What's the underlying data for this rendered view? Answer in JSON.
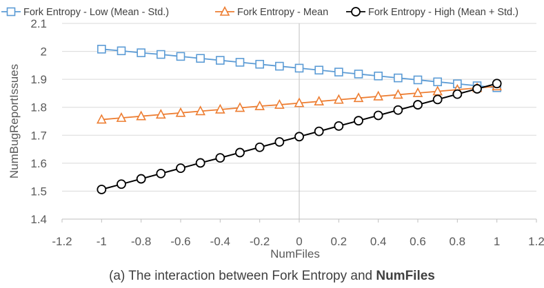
{
  "chart_data": {
    "type": "line",
    "xlabel": "NumFiles",
    "ylabel": "NumBugReportIssues",
    "xlim": [
      -1.2,
      1.2
    ],
    "ylim": [
      1.4,
      2.1
    ],
    "x_ticks": [
      "-1.2",
      "-1",
      "-0.8",
      "-0.6",
      "-0.4",
      "-0.2",
      "0",
      "0.2",
      "0.4",
      "0.6",
      "0.8",
      "1",
      "1.2"
    ],
    "y_ticks": [
      "1.4",
      "1.5",
      "1.6",
      "1.7",
      "1.8",
      "1.9",
      "2",
      "2.1"
    ],
    "grid": "horizontal",
    "legend_position": "top",
    "x": [
      -1,
      -0.9,
      -0.8,
      -0.7,
      -0.6,
      -0.5,
      -0.4,
      -0.3,
      -0.2,
      -0.1,
      0,
      0.1,
      0.2,
      0.3,
      0.4,
      0.5,
      0.6,
      0.7,
      0.8,
      0.9,
      1
    ],
    "series": [
      {
        "name": "Fork Entropy - Low (Mean - Std.)",
        "color": "#5b9bd5",
        "marker": "square",
        "values": [
          2.008,
          2.002,
          1.995,
          1.989,
          1.982,
          1.975,
          1.968,
          1.961,
          1.954,
          1.947,
          1.94,
          1.933,
          1.926,
          1.919,
          1.912,
          1.905,
          1.898,
          1.891,
          1.884,
          1.877,
          1.87
        ]
      },
      {
        "name": "Fork Entropy - Mean",
        "color": "#ed7d31",
        "marker": "triangle",
        "values": [
          1.756,
          1.762,
          1.768,
          1.774,
          1.78,
          1.786,
          1.792,
          1.798,
          1.804,
          1.809,
          1.815,
          1.821,
          1.827,
          1.833,
          1.839,
          1.845,
          1.851,
          1.857,
          1.863,
          1.869,
          1.875
        ]
      },
      {
        "name": "Fork Entropy - High (Mean + Std.)",
        "color": "#000000",
        "marker": "circle",
        "values": [
          1.506,
          1.525,
          1.544,
          1.563,
          1.582,
          1.601,
          1.619,
          1.638,
          1.657,
          1.676,
          1.695,
          1.714,
          1.733,
          1.752,
          1.771,
          1.79,
          1.809,
          1.828,
          1.847,
          1.866,
          1.885
        ]
      }
    ]
  },
  "caption": {
    "prefix": "(a) The interaction between Fork Entropy and ",
    "bold": "NumFiles"
  }
}
